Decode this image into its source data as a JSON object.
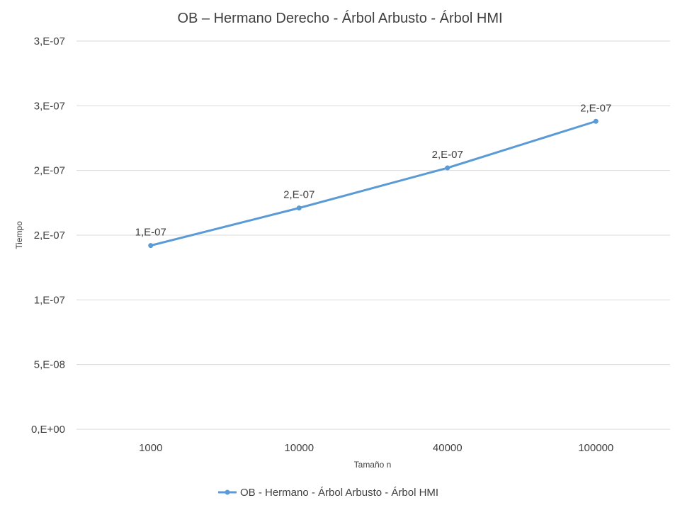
{
  "chart_data": {
    "type": "line",
    "title": "OB – Hermano Derecho - Árbol Arbusto - Árbol HMI",
    "xlabel": "Tamaño n",
    "ylabel": "Tiempo",
    "categories": [
      "1000",
      "10000",
      "40000",
      "100000"
    ],
    "y_ticks": [
      {
        "value": 0,
        "label": "0,E+00"
      },
      {
        "value": 5e-08,
        "label": "5,E-08"
      },
      {
        "value": 1e-07,
        "label": "1,E-07"
      },
      {
        "value": 1.5e-07,
        "label": "2,E-07"
      },
      {
        "value": 2e-07,
        "label": "2,E-07"
      },
      {
        "value": 2.5e-07,
        "label": "3,E-07"
      },
      {
        "value": 3e-07,
        "label": "3,E-07"
      }
    ],
    "ylim": [
      0,
      3e-07
    ],
    "grid": true,
    "legend_position": "bottom",
    "series": [
      {
        "name": "OB - Hermano - Árbol Arbusto - Árbol HMI",
        "color": "#5b9bd5",
        "values": [
          1.42e-07,
          1.71e-07,
          2.02e-07,
          2.38e-07
        ],
        "data_labels": [
          "1,E-07",
          "2,E-07",
          "2,E-07",
          "2,E-07"
        ]
      }
    ]
  }
}
